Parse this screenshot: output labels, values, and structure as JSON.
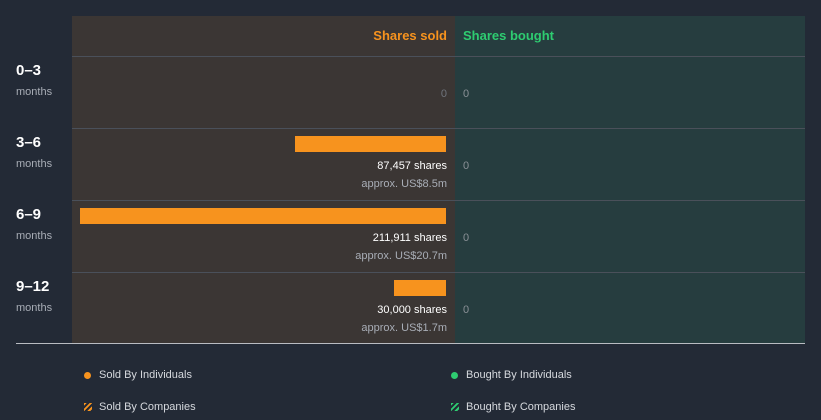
{
  "chart_data": {
    "type": "bar",
    "orientation": "horizontal",
    "columns": [
      "Shares sold",
      "Shares bought"
    ],
    "colors": {
      "sold": "#f7931e",
      "bought": "#2ecc71"
    },
    "periods": [
      {
        "period": "0–3",
        "unit": "months",
        "sold": 0,
        "sold_label": "0",
        "bought": 0,
        "bought_label": "0"
      },
      {
        "period": "3–6",
        "unit": "months",
        "sold": 87457,
        "sold_label": "87,457 shares",
        "sold_value": "approx. US$8.5m",
        "bought": 0,
        "bought_label": "0"
      },
      {
        "period": "6–9",
        "unit": "months",
        "sold": 211911,
        "sold_label": "211,911 shares",
        "sold_value": "approx. US$20.7m",
        "bought": 0,
        "bought_label": "0"
      },
      {
        "period": "9–12",
        "unit": "months",
        "sold": 30000,
        "sold_label": "30,000 shares",
        "sold_value": "approx. US$1.7m",
        "bought": 0,
        "bought_label": "0"
      }
    ],
    "sold_max": 211911
  },
  "legend": {
    "sold_individuals": "Sold By Individuals",
    "bought_individuals": "Bought By Individuals",
    "sold_companies": "Sold By Companies",
    "bought_companies": "Bought By Companies"
  }
}
